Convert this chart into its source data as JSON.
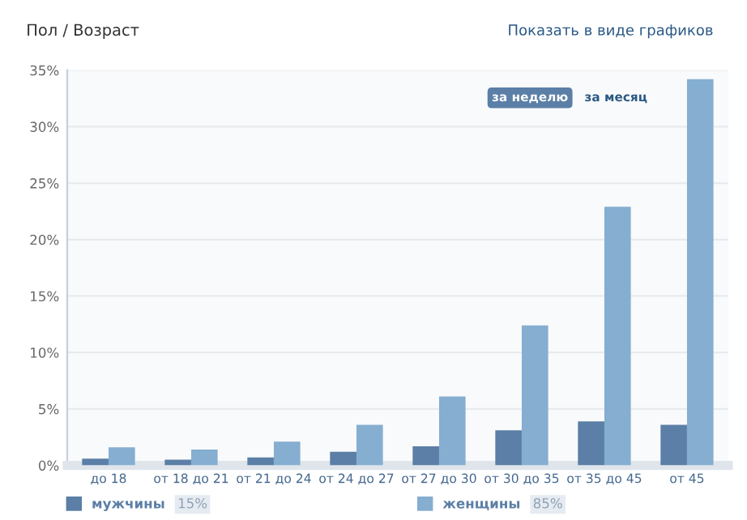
{
  "chart_data": {
    "type": "bar",
    "title": "Пол / Возраст",
    "categories": [
      "до 18",
      "от 18 до 21",
      "от 21 до 24",
      "от 24 до 27",
      "от 27 до 30",
      "от 30 до 35",
      "от 35 до 45",
      "от 45"
    ],
    "series": [
      {
        "name": "мужчины",
        "color": "#5b7fa6",
        "values": [
          0.6,
          0.5,
          0.7,
          1.2,
          1.7,
          3.1,
          3.9,
          3.6
        ]
      },
      {
        "name": "женщины",
        "color": "#85aed1",
        "values": [
          1.6,
          1.4,
          2.1,
          3.6,
          6.1,
          12.4,
          22.9,
          34.2
        ]
      }
    ],
    "ylim": [
      0,
      35
    ],
    "yticks": [
      {
        "value": 0,
        "label": "0%"
      },
      {
        "value": 5,
        "label": "5%"
      },
      {
        "value": 10,
        "label": "10%"
      },
      {
        "value": 15,
        "label": "15%"
      },
      {
        "value": 20,
        "label": "20%"
      },
      {
        "value": 25,
        "label": "25%"
      },
      {
        "value": 30,
        "label": "30%"
      },
      {
        "value": 35,
        "label": "35%"
      }
    ],
    "grid": "y",
    "legend": "bottom",
    "annotations": [
      "Показать в виде графиков",
      "за неделю",
      "за месяц",
      "15%",
      "85%"
    ]
  }
}
